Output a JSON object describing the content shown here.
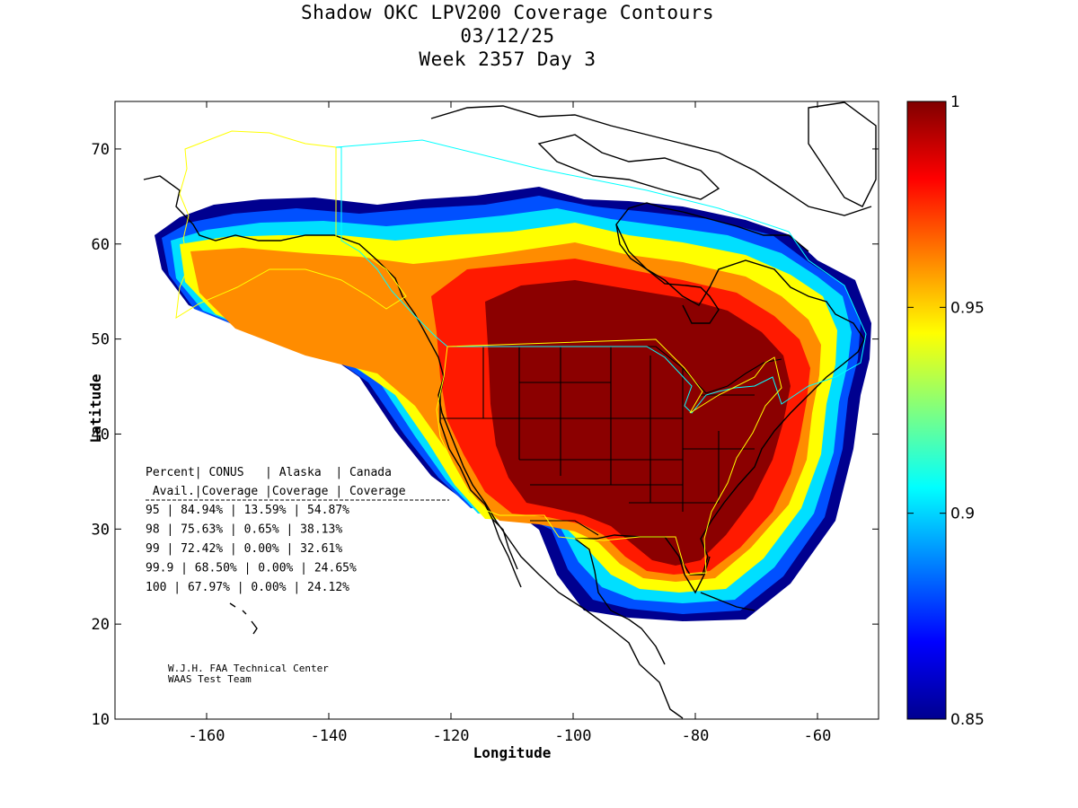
{
  "title": {
    "line1": "Shadow OKC LPV200 Coverage Contours",
    "line2": "03/12/25",
    "line3": "Week 2357 Day 3"
  },
  "axes": {
    "xlabel": "Longitude",
    "ylabel": "Latitude",
    "xlim": [
      -175,
      -50
    ],
    "ylim": [
      10,
      75
    ],
    "xticks": [
      -160,
      -140,
      -120,
      -100,
      -80,
      -60
    ],
    "yticks": [
      10,
      20,
      30,
      40,
      50,
      60,
      70
    ]
  },
  "colorbar": {
    "range": [
      0.85,
      1
    ],
    "ticks": [
      "1",
      "0.95",
      "0.9",
      "0.85"
    ],
    "tick_values": [
      1,
      0.95,
      0.9,
      0.85
    ],
    "colormap": "jet"
  },
  "table": {
    "header1": "Percent| CONUS   | Alaska  | Canada",
    "header2": " Avail.|Coverage |Coverage | Coverage",
    "rows": [
      {
        "percent": "95",
        "conus": "84.94%",
        "alaska": "13.59%",
        "canada": "54.87%"
      },
      {
        "percent": "98",
        "conus": "75.63%",
        "alaska": "0.65%",
        "canada": "38.13%"
      },
      {
        "percent": "99",
        "conus": "72.42%",
        "alaska": "0.00%",
        "canada": "32.61%"
      },
      {
        "percent": "99.9",
        "conus": "68.50%",
        "alaska": "0.00%",
        "canada": "24.65%"
      },
      {
        "percent": "100",
        "conus": "67.97%",
        "alaska": "0.00%",
        "canada": "24.12%"
      }
    ]
  },
  "credits": {
    "line1": "W.J.H. FAA Technical Center",
    "line2": "WAAS Test Team"
  },
  "colors": {
    "alaska_border": "#ffff00",
    "canada_border": "#00ffff",
    "conus_border": "#ffff00",
    "coastline": "#000000"
  }
}
